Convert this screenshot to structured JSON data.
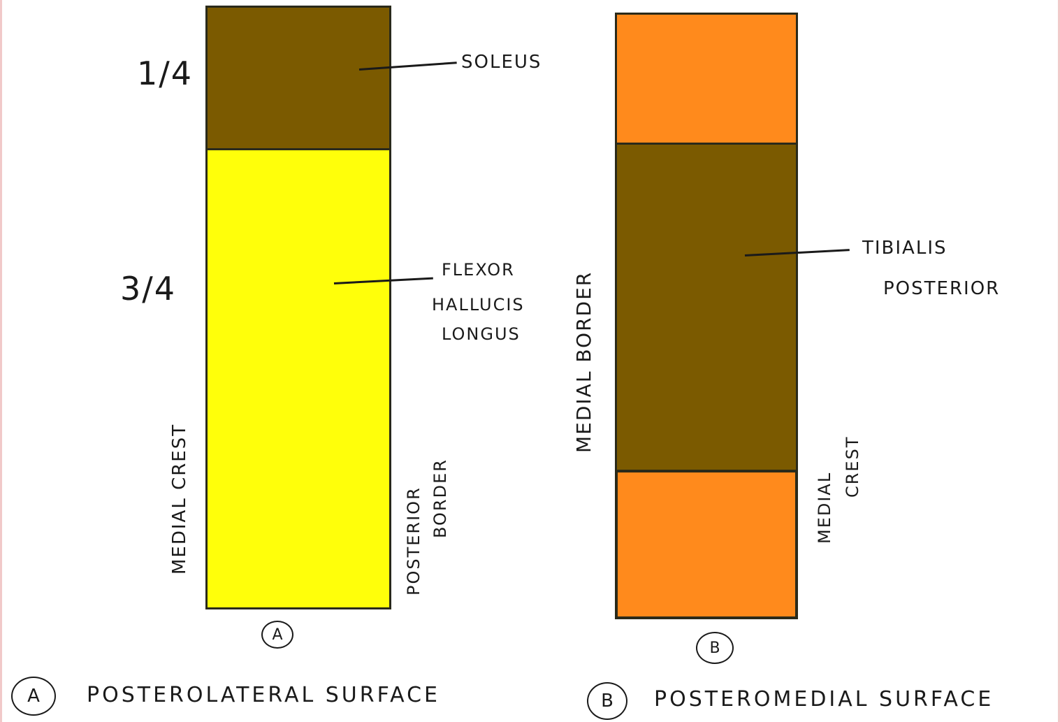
{
  "colors": {
    "soleus": "#7b5a00",
    "flexor": "#ffff0a",
    "tibialis": "#7b5a00",
    "orange": "#ff8a1c",
    "ink": "#1a1a1a"
  },
  "diagram_a": {
    "fraction_top": "1/4",
    "fraction_bottom": "3/4",
    "muscle_top": "SOLEUS",
    "muscle_bottom_line1": "FLEXOR",
    "muscle_bottom_line2": "HALLUCIS",
    "muscle_bottom_line3": "LONGUS",
    "left_border": "MEDIAL CREST",
    "right_border_line1": "POSTERIOR",
    "right_border_line2": "BORDER",
    "marker": "A"
  },
  "diagram_b": {
    "muscle_line1": "TIBIALIS",
    "muscle_line2": "POSTERIOR",
    "left_border": "MEDIAL BORDER",
    "right_border_line1": "MEDIAL",
    "right_border_line2": "CREST",
    "marker": "B"
  },
  "legend": [
    {
      "marker": "A",
      "text": "POSTEROLATERAL SURFACE"
    },
    {
      "marker": "B",
      "text": "POSTEROMEDIAL SURFACE"
    }
  ]
}
